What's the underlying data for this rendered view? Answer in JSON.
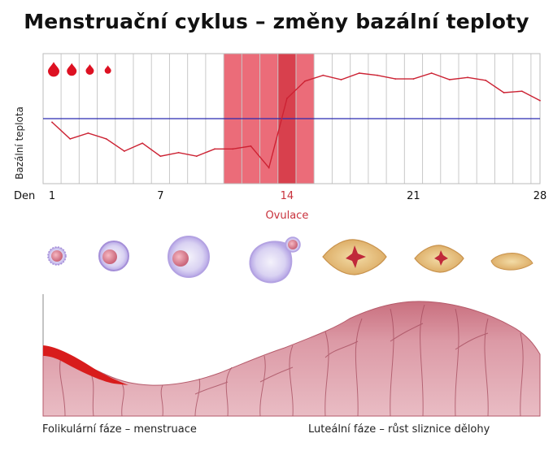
{
  "title": "Menstruační cyklus – změny bazální teploty",
  "chart_data": {
    "type": "line",
    "ylabel": "Bazální teplota",
    "xlabel": "Den",
    "x_ticks": [
      1,
      7,
      14,
      21,
      28
    ],
    "x_range": [
      1,
      28
    ],
    "ovulation_label": "Ovulace",
    "ovulation_days": [
      11,
      15
    ],
    "ovulation_highlight_day": 14,
    "series": [
      {
        "x": [
          1,
          2,
          3,
          4,
          5,
          6,
          7,
          8,
          9,
          10,
          11,
          12,
          13,
          14,
          15,
          16,
          17,
          18,
          19,
          20,
          21,
          22,
          23,
          24,
          25,
          26,
          27,
          28
        ],
        "values": [
          36.35,
          36.12,
          36.2,
          36.12,
          35.95,
          36.06,
          35.88,
          35.93,
          35.88,
          35.98,
          35.98,
          36.02,
          35.72,
          36.68,
          36.92,
          37.0,
          36.94,
          37.03,
          37.0,
          36.95,
          36.95,
          37.03,
          36.94,
          36.97,
          36.93,
          36.76,
          36.78,
          36.65
        ],
        "color": "#cc2233"
      }
    ],
    "reference_line": {
      "value": 36.4,
      "color": "#2a2ab0"
    },
    "ylim": [
      35.5,
      37.3
    ],
    "grid": "vertical lines per day",
    "menstruation_markers": 4,
    "marker_color": "#dd1122"
  },
  "footer": {
    "left": "Folikulární fáze – menstruace",
    "right": "Luteální fáze – růst sliznice dělohy"
  },
  "colors": {
    "ovulation_band": "#e64c5c",
    "ovulation_day": "#d2323f",
    "endometrium": "#d58694",
    "blood": "#d81c1c",
    "follicle": "#cfc3f0",
    "corpus_luteum": "#e8c483"
  }
}
